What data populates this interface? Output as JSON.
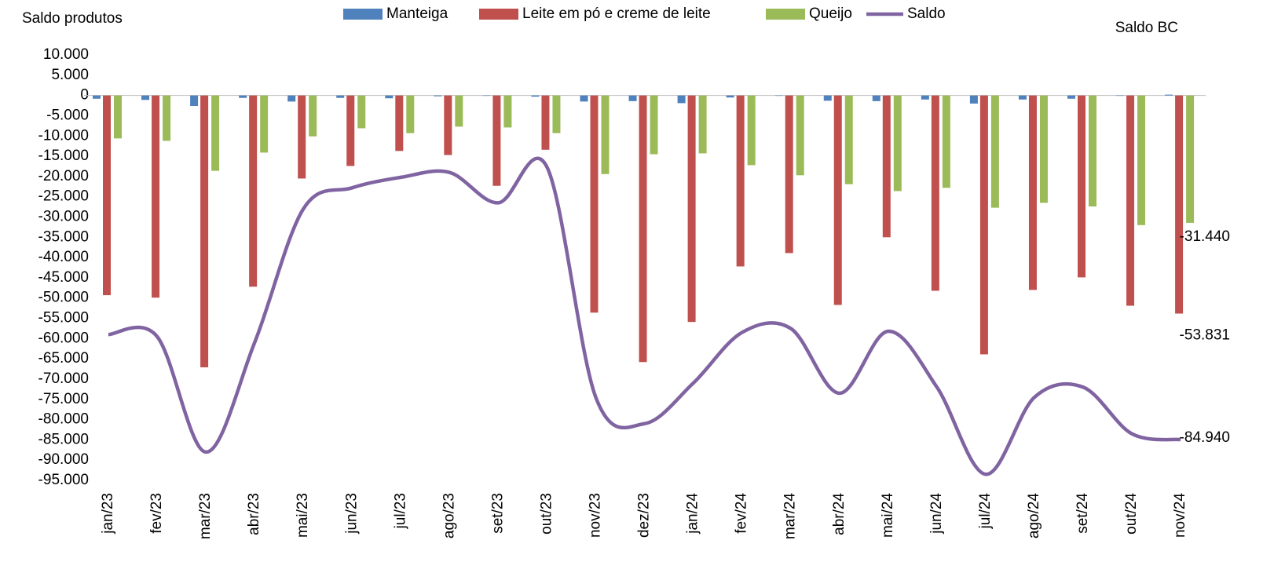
{
  "chart_data": {
    "type": "bar",
    "title": "Saldo produtos",
    "y2_label": "Saldo BC",
    "categories": [
      "jan/23",
      "fev/23",
      "mar/23",
      "abr/23",
      "mai/23",
      "jun/23",
      "jul/23",
      "ago/23",
      "set/23",
      "out/23",
      "nov/23",
      "dez/23",
      "jan/24",
      "fev/24",
      "mar/24",
      "abr/24",
      "mai/24",
      "jun/24",
      "jul/24",
      "ago/24",
      "set/24",
      "out/24",
      "nov/24"
    ],
    "series": [
      {
        "name": "Manteiga",
        "type": "bar",
        "color": "#4f81bd",
        "values": [
          -800,
          -1100,
          -2600,
          -600,
          -1500,
          -600,
          -700,
          -200,
          -100,
          -300,
          -1500,
          -1400,
          -1900,
          -500,
          -100,
          -1300,
          -1400,
          -1000,
          -2000,
          -1000,
          -800,
          -100,
          200
        ]
      },
      {
        "name": "Leite em pó e creme de leite",
        "type": "bar",
        "color": "#c0504d",
        "values": [
          -49300,
          -49900,
          -67100,
          -47200,
          -20500,
          -17400,
          -13700,
          -14700,
          -22300,
          -13400,
          -53600,
          -65800,
          -55900,
          -42200,
          -38900,
          -51700,
          -35000,
          -48200,
          -63900,
          -48000,
          -44900,
          -51900,
          -53831
        ],
        "value_labels": [
          null,
          null,
          null,
          null,
          null,
          null,
          null,
          null,
          null,
          null,
          null,
          null,
          null,
          null,
          null,
          null,
          null,
          null,
          null,
          null,
          null,
          null,
          "-53.831"
        ]
      },
      {
        "name": "Queijo",
        "type": "bar",
        "color": "#9bbb59",
        "values": [
          -10600,
          -11200,
          -18600,
          -14100,
          -10100,
          -8100,
          -9300,
          -7700,
          -7900,
          -9300,
          -19400,
          -14500,
          -14300,
          -17200,
          -19700,
          -21900,
          -23600,
          -22800,
          -27700,
          -26500,
          -27400,
          -32000,
          -31440
        ],
        "value_labels": [
          null,
          null,
          null,
          null,
          null,
          null,
          null,
          null,
          null,
          null,
          null,
          null,
          null,
          null,
          null,
          null,
          null,
          null,
          null,
          null,
          null,
          null,
          "-31.440"
        ]
      },
      {
        "name": "Saldo",
        "type": "line",
        "color": "#8064a2",
        "values": [
          -59000,
          -59500,
          -88000,
          -61000,
          -28000,
          -22800,
          -20200,
          -19000,
          -26500,
          -17700,
          -74500,
          -81000,
          -71000,
          -58500,
          -57500,
          -73500,
          -58200,
          -72000,
          -93500,
          -74500,
          -72000,
          -83500,
          -84940
        ],
        "value_labels": [
          null,
          null,
          null,
          null,
          null,
          null,
          null,
          null,
          null,
          null,
          null,
          null,
          null,
          null,
          null,
          null,
          null,
          null,
          null,
          null,
          null,
          null,
          "-84.940"
        ]
      }
    ],
    "ylim": [
      -95000,
      10000
    ],
    "yticks": [
      {
        "value": 10000,
        "label": "10.000"
      },
      {
        "value": 5000,
        "label": "5.000"
      },
      0,
      {
        "value": -5000,
        "label": "-5.000"
      },
      {
        "value": -10000,
        "label": "-10.000"
      },
      {
        "value": -15000,
        "label": "-15.000"
      },
      {
        "value": -20000,
        "label": "-20.000"
      },
      {
        "value": -25000,
        "label": "-25.000"
      },
      {
        "value": -30000,
        "label": "-30.000"
      },
      {
        "value": -35000,
        "label": "-35.000"
      },
      {
        "value": -40000,
        "label": "-40.000"
      },
      {
        "value": -45000,
        "label": "-45.000"
      },
      {
        "value": -50000,
        "label": "-50.000"
      },
      {
        "value": -55000,
        "label": "-55.000"
      },
      {
        "value": -60000,
        "label": "-60.000"
      },
      {
        "value": -65000,
        "label": "-65.000"
      },
      {
        "value": -70000,
        "label": "-70.000"
      },
      {
        "value": -75000,
        "label": "-75.000"
      },
      {
        "value": -80000,
        "label": "-80.000"
      },
      {
        "value": -85000,
        "label": "-85.000"
      },
      {
        "value": -90000,
        "label": "-90.000"
      },
      {
        "value": -95000,
        "label": "-95.000"
      }
    ],
    "grid": false
  }
}
